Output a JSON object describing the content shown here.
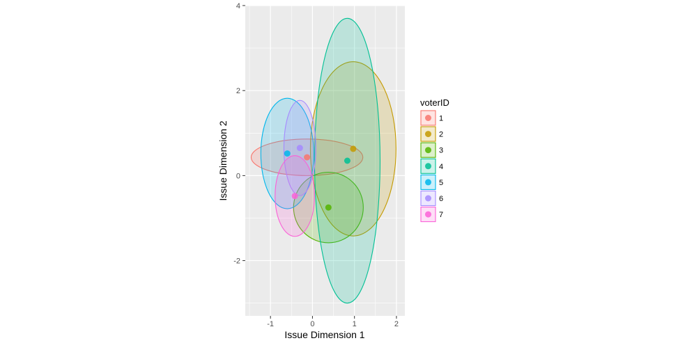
{
  "chart_data": {
    "type": "scatter",
    "title": "",
    "xlabel": "Issue Dimension 1",
    "ylabel": "Issue Dimension 2",
    "xlim": [
      -1.6,
      2.2
    ],
    "ylim": [
      -3.3,
      4.0
    ],
    "xticks": [
      -1,
      0,
      1,
      2
    ],
    "xtick_labels": [
      "-1",
      "0",
      "1",
      "2"
    ],
    "yticks": [
      -2,
      0,
      2,
      4
    ],
    "ytick_labels": [
      "-2",
      "0",
      "2",
      "4"
    ],
    "grid": true,
    "legend": {
      "title": "voterID",
      "position": "right"
    },
    "series": [
      {
        "name": "1",
        "color": "#F8766D",
        "point": [
          -0.13,
          0.43
        ],
        "ellipse": {
          "center": [
            -0.13,
            0.43
          ],
          "rx": 1.33,
          "ry": 0.43
        }
      },
      {
        "name": "2",
        "color": "#C49A00",
        "point": [
          0.97,
          0.63
        ],
        "ellipse": {
          "center": [
            0.97,
            0.63
          ],
          "rx": 1.02,
          "ry": 2.05
        }
      },
      {
        "name": "3",
        "color": "#53B400",
        "point": [
          0.38,
          -0.75
        ],
        "ellipse": {
          "center": [
            0.38,
            -0.75
          ],
          "rx": 0.83,
          "ry": 0.83
        }
      },
      {
        "name": "4",
        "color": "#00C094",
        "point": [
          0.83,
          0.35
        ],
        "ellipse": {
          "center": [
            0.83,
            0.35
          ],
          "rx": 0.78,
          "ry": 3.35
        }
      },
      {
        "name": "5",
        "color": "#00B6EB",
        "point": [
          -0.6,
          0.52
        ],
        "ellipse": {
          "center": [
            -0.6,
            0.52
          ],
          "rx": 0.63,
          "ry": 1.3
        }
      },
      {
        "name": "6",
        "color": "#A58AFF",
        "point": [
          -0.3,
          0.65
        ],
        "ellipse": {
          "center": [
            -0.3,
            0.65
          ],
          "rx": 0.38,
          "ry": 1.12
        }
      },
      {
        "name": "7",
        "color": "#FB61D7",
        "point": [
          -0.42,
          -0.48
        ],
        "ellipse": {
          "center": [
            -0.42,
            -0.48
          ],
          "rx": 0.47,
          "ry": 0.95
        }
      }
    ]
  }
}
